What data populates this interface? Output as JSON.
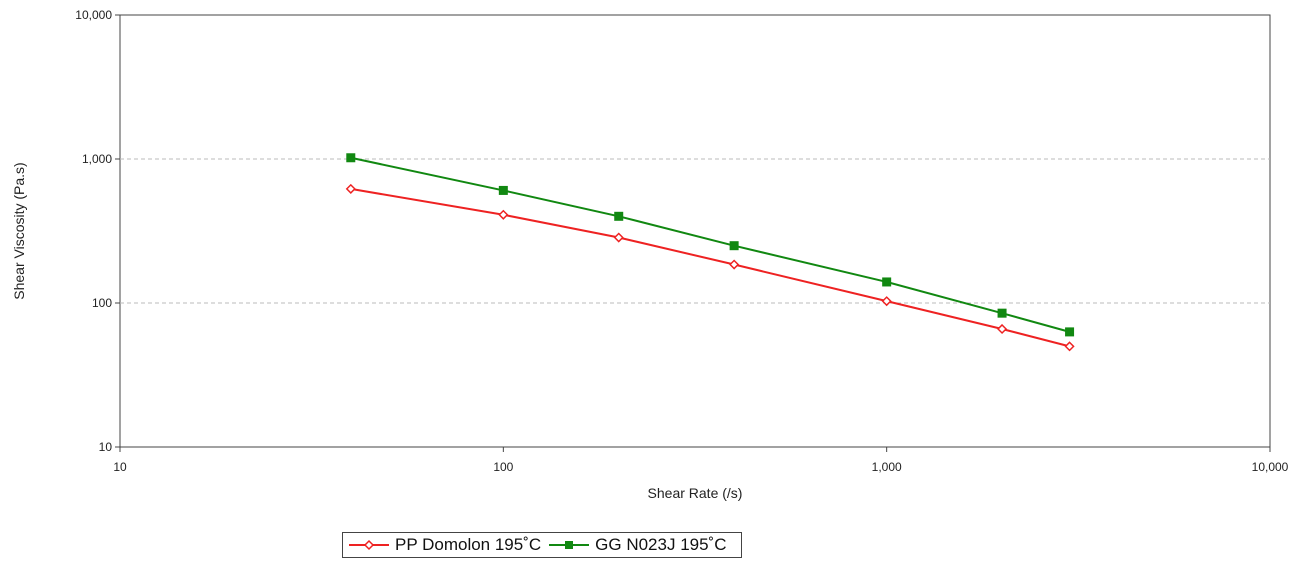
{
  "chart_data": {
    "type": "line",
    "xlabel": "Shear Rate (/s)",
    "ylabel": "Shear Viscosity (Pa.s)",
    "xscale": "log",
    "yscale": "log",
    "xlim": [
      10,
      10000
    ],
    "ylim": [
      10,
      10000
    ],
    "x_ticks": [
      "10",
      "100",
      "1,000",
      "10,000"
    ],
    "y_ticks": [
      "10",
      "100",
      "1,000",
      "10,000"
    ],
    "grid": "horizontal dashed at 100 and 1,000",
    "legend_position": "bottom",
    "series": [
      {
        "name": "PP Domolon 195˚C",
        "color": "#ee2222",
        "marker": "diamond-open",
        "x": [
          40,
          100,
          200,
          400,
          1000,
          2000,
          3000
        ],
        "y": [
          620,
          410,
          285,
          185,
          103,
          66,
          50
        ]
      },
      {
        "name": "GG N023J 195˚C",
        "color": "#118811",
        "marker": "square-filled",
        "x": [
          40,
          100,
          200,
          400,
          1000,
          2000,
          3000
        ],
        "y": [
          1020,
          605,
          400,
          250,
          140,
          85,
          63
        ]
      }
    ]
  }
}
